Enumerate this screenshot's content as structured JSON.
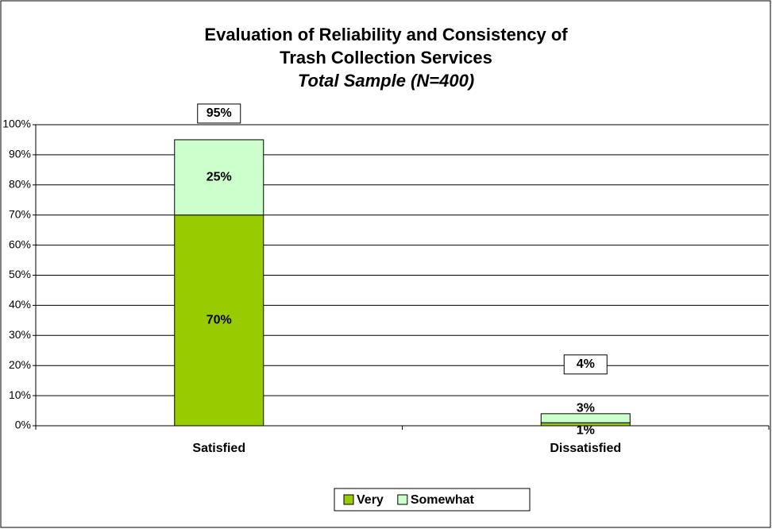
{
  "chart_data": {
    "type": "stacked_bar",
    "title": "Evaluation of Reliability and Consistency of",
    "title_line2": "Trash Collection Services",
    "subtitle": "Total Sample (N=400)",
    "categories": [
      "Satisfied",
      "Dissatisfied"
    ],
    "series": [
      {
        "name": "Very",
        "color": "#99cc00",
        "values": [
          70,
          1
        ],
        "value_labels": [
          "70%",
          "1%"
        ]
      },
      {
        "name": "Somewhat",
        "color": "#ccffcc",
        "values": [
          25,
          3
        ],
        "value_labels": [
          "25%",
          "3%"
        ]
      }
    ],
    "totals": [
      95,
      4
    ],
    "total_labels": [
      "95%",
      "4%"
    ],
    "ylim": [
      0,
      100
    ],
    "yticks": [
      {
        "value": 0,
        "label": "0%"
      },
      {
        "value": 10,
        "label": "10%"
      },
      {
        "value": 20,
        "label": "20%"
      },
      {
        "value": 30,
        "label": "30%"
      },
      {
        "value": 40,
        "label": "40%"
      },
      {
        "value": 50,
        "label": "50%"
      },
      {
        "value": 60,
        "label": "60%"
      },
      {
        "value": 70,
        "label": "70%"
      },
      {
        "value": 80,
        "label": "80%"
      },
      {
        "value": 90,
        "label": "90%"
      },
      {
        "value": 100,
        "label": "100%"
      }
    ],
    "grid": true,
    "legend": "bottom"
  }
}
